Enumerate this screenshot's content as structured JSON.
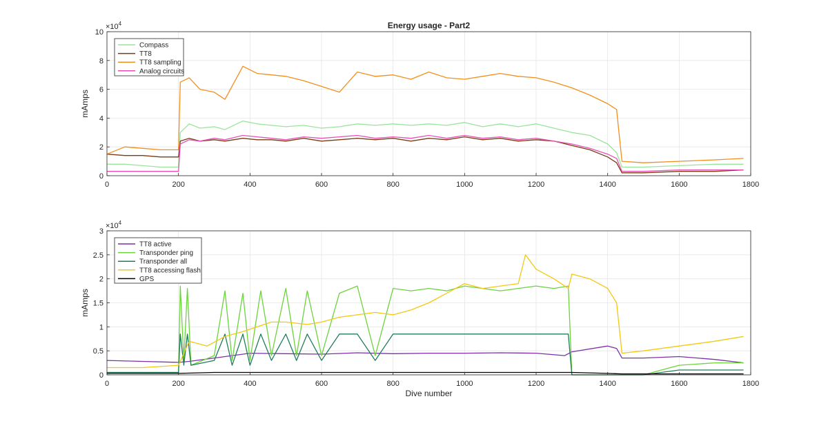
{
  "figure": {
    "background": "#ffffff"
  },
  "chart_data": [
    {
      "type": "line",
      "title": "Energy usage - Part2",
      "xlabel": "",
      "ylabel": "mAmps",
      "exponent_label": "×10",
      "exponent_power": "4",
      "xlim": [
        0,
        1800
      ],
      "ylim": [
        0,
        10
      ],
      "y_scale_note": "values in units of 10^4",
      "xticks": [
        "0",
        "200",
        "400",
        "600",
        "800",
        "1000",
        "1200",
        "1400",
        "1600",
        "1800"
      ],
      "yticks": [
        "0",
        "2",
        "4",
        "6",
        "8",
        "10"
      ],
      "grid": true,
      "legend_placement": "top-left",
      "legend": [
        "Compass",
        "TT8",
        "TT8 sampling",
        "Analog circuits"
      ],
      "series": [
        {
          "name": "Compass",
          "color": "#98e59a",
          "x": [
            0,
            50,
            100,
            150,
            200,
            205,
            230,
            260,
            300,
            330,
            380,
            420,
            460,
            500,
            550,
            600,
            650,
            700,
            750,
            800,
            850,
            900,
            950,
            1000,
            1050,
            1100,
            1150,
            1200,
            1250,
            1300,
            1350,
            1400,
            1425,
            1440,
            1500,
            1600,
            1700,
            1780
          ],
          "y": [
            0.8,
            0.8,
            0.7,
            0.6,
            0.6,
            3.0,
            3.6,
            3.3,
            3.4,
            3.2,
            3.8,
            3.6,
            3.5,
            3.4,
            3.5,
            3.3,
            3.4,
            3.6,
            3.5,
            3.6,
            3.5,
            3.6,
            3.5,
            3.7,
            3.4,
            3.6,
            3.4,
            3.6,
            3.3,
            3.0,
            2.8,
            2.2,
            1.6,
            0.6,
            0.6,
            0.7,
            0.8,
            0.8
          ]
        },
        {
          "name": "TT8",
          "color": "#7b3a12",
          "x": [
            0,
            50,
            100,
            150,
            200,
            205,
            230,
            260,
            300,
            330,
            380,
            420,
            460,
            500,
            550,
            600,
            650,
            700,
            750,
            800,
            850,
            900,
            950,
            1000,
            1050,
            1100,
            1150,
            1200,
            1250,
            1300,
            1350,
            1400,
            1425,
            1440,
            1500,
            1600,
            1700,
            1780
          ],
          "y": [
            1.5,
            1.4,
            1.4,
            1.3,
            1.3,
            2.4,
            2.6,
            2.4,
            2.5,
            2.4,
            2.6,
            2.5,
            2.5,
            2.4,
            2.6,
            2.4,
            2.5,
            2.6,
            2.5,
            2.6,
            2.4,
            2.6,
            2.5,
            2.7,
            2.5,
            2.6,
            2.4,
            2.5,
            2.4,
            2.1,
            1.8,
            1.3,
            0.9,
            0.2,
            0.2,
            0.3,
            0.3,
            0.4
          ]
        },
        {
          "name": "TT8 sampling",
          "color": "#f28e1c",
          "x": [
            0,
            50,
            100,
            150,
            200,
            205,
            230,
            260,
            300,
            330,
            380,
            420,
            460,
            500,
            550,
            600,
            650,
            700,
            750,
            800,
            850,
            900,
            950,
            1000,
            1050,
            1100,
            1150,
            1200,
            1250,
            1300,
            1350,
            1400,
            1425,
            1440,
            1500,
            1600,
            1700,
            1780
          ],
          "y": [
            1.5,
            2.0,
            1.9,
            1.8,
            1.8,
            6.5,
            6.8,
            6.0,
            5.8,
            5.3,
            7.6,
            7.1,
            7.0,
            6.9,
            6.6,
            6.2,
            5.8,
            7.2,
            6.9,
            7.0,
            6.7,
            7.2,
            6.8,
            6.7,
            6.9,
            7.1,
            6.9,
            6.8,
            6.5,
            6.1,
            5.6,
            5.0,
            4.6,
            1.0,
            0.9,
            1.0,
            1.1,
            1.2
          ]
        },
        {
          "name": "Analog circuits",
          "color": "#e84fb4",
          "x": [
            0,
            50,
            100,
            150,
            200,
            205,
            230,
            260,
            300,
            330,
            380,
            420,
            460,
            500,
            550,
            600,
            650,
            700,
            750,
            800,
            850,
            900,
            950,
            1000,
            1050,
            1100,
            1150,
            1200,
            1250,
            1300,
            1350,
            1400,
            1425,
            1440,
            1500,
            1600,
            1700,
            1780
          ],
          "y": [
            0.3,
            0.3,
            0.3,
            0.3,
            0.3,
            2.2,
            2.5,
            2.4,
            2.6,
            2.5,
            2.8,
            2.7,
            2.6,
            2.5,
            2.7,
            2.6,
            2.7,
            2.8,
            2.6,
            2.7,
            2.6,
            2.8,
            2.6,
            2.8,
            2.6,
            2.7,
            2.5,
            2.6,
            2.4,
            2.2,
            1.9,
            1.5,
            1.2,
            0.3,
            0.3,
            0.4,
            0.4,
            0.4
          ]
        }
      ]
    },
    {
      "type": "line",
      "title": "",
      "xlabel": "Dive number",
      "ylabel": "mAmps",
      "exponent_label": "×10",
      "exponent_power": "4",
      "xlim": [
        0,
        1800
      ],
      "ylim": [
        0,
        3
      ],
      "y_scale_note": "values in units of 10^4",
      "xticks": [
        "0",
        "200",
        "400",
        "600",
        "800",
        "1000",
        "1200",
        "1400",
        "1600",
        "1800"
      ],
      "yticks": [
        "0",
        "0.5",
        "1",
        "1.5",
        "2",
        "2.5",
        "3"
      ],
      "grid": true,
      "legend_placement": "top-left",
      "legend": [
        "TT8 active",
        "Transponder ping",
        "Transponder all",
        "TT8 accessing flash",
        "GPS"
      ],
      "series": [
        {
          "name": "TT8 active",
          "color": "#7e2fa8",
          "x": [
            0,
            100,
            200,
            230,
            300,
            400,
            500,
            600,
            700,
            800,
            900,
            1000,
            1100,
            1200,
            1280,
            1300,
            1400,
            1425,
            1440,
            1500,
            1600,
            1700,
            1780
          ],
          "y": [
            0.3,
            0.28,
            0.26,
            0.28,
            0.35,
            0.45,
            0.44,
            0.43,
            0.46,
            0.44,
            0.45,
            0.45,
            0.46,
            0.45,
            0.4,
            0.48,
            0.6,
            0.55,
            0.35,
            0.35,
            0.38,
            0.32,
            0.25
          ]
        },
        {
          "name": "Transponder ping",
          "color": "#6bd33b",
          "x": [
            0,
            100,
            200,
            205,
            215,
            225,
            235,
            300,
            330,
            350,
            380,
            400,
            430,
            460,
            500,
            530,
            560,
            600,
            650,
            700,
            750,
            800,
            850,
            900,
            950,
            1000,
            1050,
            1100,
            1150,
            1200,
            1250,
            1290,
            1300,
            1440,
            1500,
            1600,
            1700,
            1780
          ],
          "y": [
            0.05,
            0.05,
            0.05,
            1.85,
            0.3,
            1.8,
            0.2,
            0.4,
            1.75,
            0.3,
            1.7,
            0.3,
            1.75,
            0.4,
            1.8,
            0.4,
            1.75,
            0.4,
            1.7,
            1.85,
            0.4,
            1.8,
            1.75,
            1.8,
            1.75,
            1.85,
            1.8,
            1.75,
            1.8,
            1.85,
            1.8,
            1.85,
            0.0,
            0.0,
            0.0,
            0.2,
            0.25,
            0.25
          ]
        },
        {
          "name": "Transponder all",
          "color": "#1f7c5a",
          "x": [
            0,
            100,
            200,
            205,
            215,
            225,
            235,
            300,
            330,
            350,
            380,
            400,
            430,
            460,
            500,
            530,
            560,
            600,
            650,
            700,
            750,
            800,
            850,
            900,
            950,
            1000,
            1050,
            1100,
            1150,
            1200,
            1250,
            1290,
            1300,
            1440,
            1500,
            1600,
            1700,
            1780
          ],
          "y": [
            0.05,
            0.05,
            0.05,
            0.85,
            0.2,
            0.85,
            0.2,
            0.3,
            0.85,
            0.2,
            0.85,
            0.2,
            0.85,
            0.3,
            0.85,
            0.3,
            0.85,
            0.3,
            0.85,
            0.85,
            0.3,
            0.85,
            0.85,
            0.85,
            0.85,
            0.85,
            0.85,
            0.85,
            0.85,
            0.85,
            0.85,
            0.85,
            0.0,
            0.0,
            0.0,
            0.1,
            0.1,
            0.1
          ]
        },
        {
          "name": "TT8 accessing flash",
          "color": "#f2c811",
          "x": [
            0,
            100,
            200,
            230,
            280,
            330,
            380,
            420,
            460,
            500,
            560,
            600,
            650,
            700,
            750,
            800,
            850,
            900,
            950,
            1000,
            1050,
            1100,
            1150,
            1170,
            1200,
            1250,
            1290,
            1300,
            1350,
            1400,
            1425,
            1440,
            1500,
            1600,
            1700,
            1780
          ],
          "y": [
            0.15,
            0.15,
            0.2,
            0.7,
            0.6,
            0.8,
            0.9,
            1.0,
            1.1,
            1.1,
            1.05,
            1.1,
            1.2,
            1.25,
            1.3,
            1.25,
            1.35,
            1.5,
            1.7,
            1.9,
            1.8,
            1.85,
            1.9,
            2.5,
            2.2,
            2.0,
            1.8,
            2.1,
            2.0,
            1.8,
            1.5,
            0.45,
            0.5,
            0.6,
            0.7,
            0.8
          ]
        },
        {
          "name": "GPS",
          "color": "#000000",
          "x": [
            0,
            100,
            200,
            300,
            400,
            500,
            600,
            700,
            800,
            900,
            1000,
            1100,
            1200,
            1300,
            1400,
            1440,
            1500,
            1600,
            1700,
            1780
          ],
          "y": [
            0.03,
            0.03,
            0.03,
            0.05,
            0.05,
            0.05,
            0.05,
            0.05,
            0.05,
            0.05,
            0.05,
            0.05,
            0.05,
            0.05,
            0.03,
            0.02,
            0.02,
            0.02,
            0.02,
            0.02
          ]
        }
      ]
    }
  ]
}
